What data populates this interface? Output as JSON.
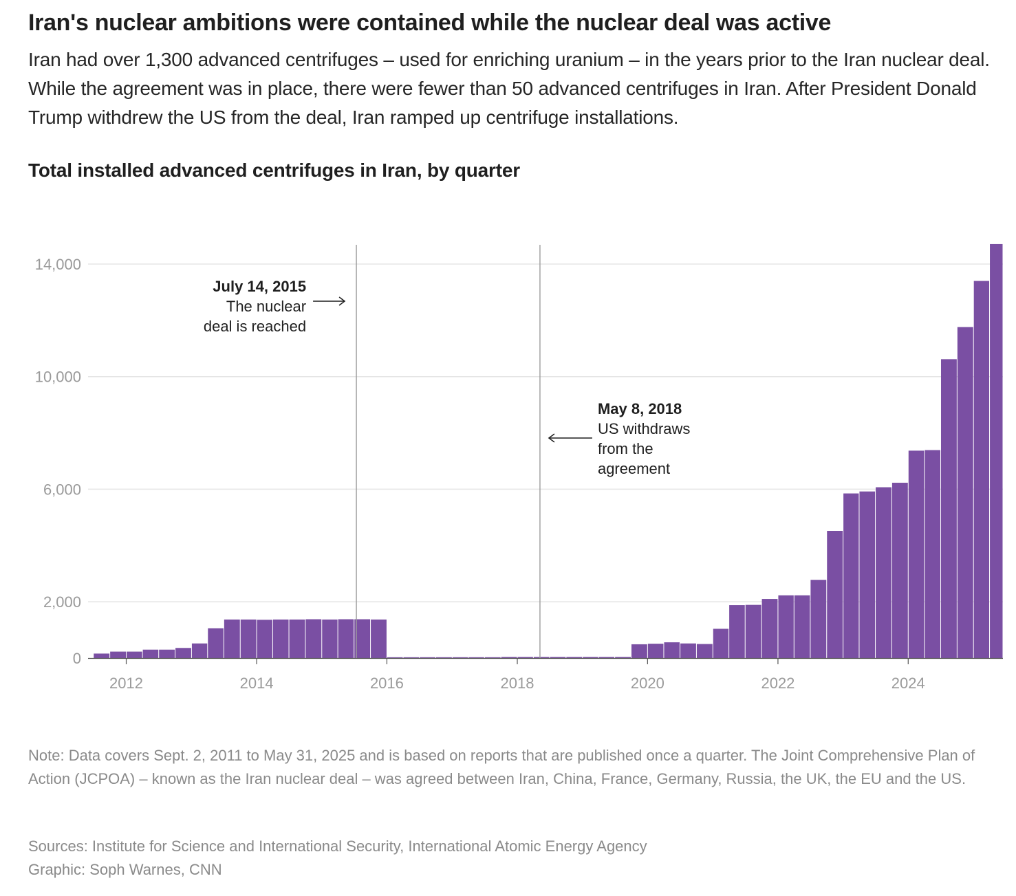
{
  "headline": "Iran's nuclear ambitions were contained while the nuclear deal was active",
  "dek": "Iran had over 1,300 advanced centrifuges – used for enriching uranium – in the years prior to the Iran nuclear deal. While the agreement was in place, there were fewer than 50 advanced centrifuges in Iran. After President Donald Trump withdrew the US from the deal, Iran ramped up centrifuge installations.",
  "chart_title": "Total installed advanced centrifuges in Iran, by quarter",
  "colors": {
    "bar": "#7a4fa3",
    "grid": "#e5e5e5",
    "tick": "#9a9a9a",
    "marker": "#9c9c9c"
  },
  "chart_data": {
    "type": "bar",
    "title": "Total installed advanced centrifuges in Iran, by quarter",
    "xlabel": "",
    "ylabel": "",
    "ylim": [
      0,
      14700
    ],
    "xlim": [
      "2011-06-01",
      "2025-06-15"
    ],
    "yticks": [
      0,
      2000,
      6000,
      10000,
      14000
    ],
    "ytick_labels": [
      "0",
      "2,000",
      "6,000",
      "10,000",
      "14,000"
    ],
    "xticks": [
      "2012",
      "2014",
      "2016",
      "2018",
      "2020",
      "2022",
      "2024"
    ],
    "grid": true,
    "legend": "none",
    "x": [
      "2011 Q3",
      "2011 Q4",
      "2012 Q1",
      "2012 Q2",
      "2012 Q3",
      "2012 Q4",
      "2013 Q1",
      "2013 Q2",
      "2013 Q3",
      "2013 Q4",
      "2014 Q1",
      "2014 Q2",
      "2014 Q3",
      "2014 Q4",
      "2015 Q1",
      "2015 Q2",
      "2015 Q3",
      "2015 Q4",
      "2016 Q1",
      "2016 Q2",
      "2016 Q3",
      "2016 Q4",
      "2017 Q1",
      "2017 Q2",
      "2017 Q3",
      "2017 Q4",
      "2018 Q1",
      "2018 Q2",
      "2018 Q3",
      "2018 Q4",
      "2019 Q1",
      "2019 Q2",
      "2019 Q3",
      "2019 Q4",
      "2020 Q1",
      "2020 Q2",
      "2020 Q3",
      "2020 Q4",
      "2021 Q1",
      "2021 Q2",
      "2021 Q3",
      "2021 Q4",
      "2022 Q1",
      "2022 Q2",
      "2022 Q3",
      "2022 Q4",
      "2023 Q1",
      "2023 Q2",
      "2023 Q3",
      "2023 Q4",
      "2024 Q1",
      "2024 Q2",
      "2024 Q3",
      "2024 Q4",
      "2025 Q1",
      "2025 Q2"
    ],
    "values": [
      160,
      230,
      230,
      300,
      300,
      360,
      520,
      1060,
      1370,
      1370,
      1360,
      1370,
      1370,
      1380,
      1370,
      1380,
      1380,
      1370,
      20,
      20,
      30,
      30,
      30,
      30,
      30,
      40,
      40,
      40,
      40,
      40,
      40,
      40,
      40,
      490,
      510,
      560,
      520,
      500,
      1040,
      1880,
      1890,
      2100,
      2230,
      2230,
      2780,
      4520,
      5850,
      5920,
      6070,
      6230,
      7370,
      7390,
      10620,
      11760,
      13400,
      14710
    ],
    "annotations": [
      {
        "date": "2015-07-14",
        "label_date": "July 14, 2015",
        "text_lines": [
          "The nuclear",
          "deal is reached"
        ]
      },
      {
        "date": "2018-05-08",
        "label_date": "May 8, 2018",
        "text_lines": [
          "US withdraws",
          "from the",
          "agreement"
        ]
      }
    ]
  },
  "note": "Note: Data covers Sept. 2, 2011 to May 31, 2025 and is based on reports that are published once a quarter. The Joint Comprehensive Plan of Action (JCPOA) – known as the Iran nuclear deal – was agreed between Iran, China, France, Germany, Russia, the UK, the EU and the US.",
  "sources": "Sources: Institute for Science and International Security, International Atomic Energy Agency",
  "credit": "Graphic: Soph Warnes, CNN"
}
